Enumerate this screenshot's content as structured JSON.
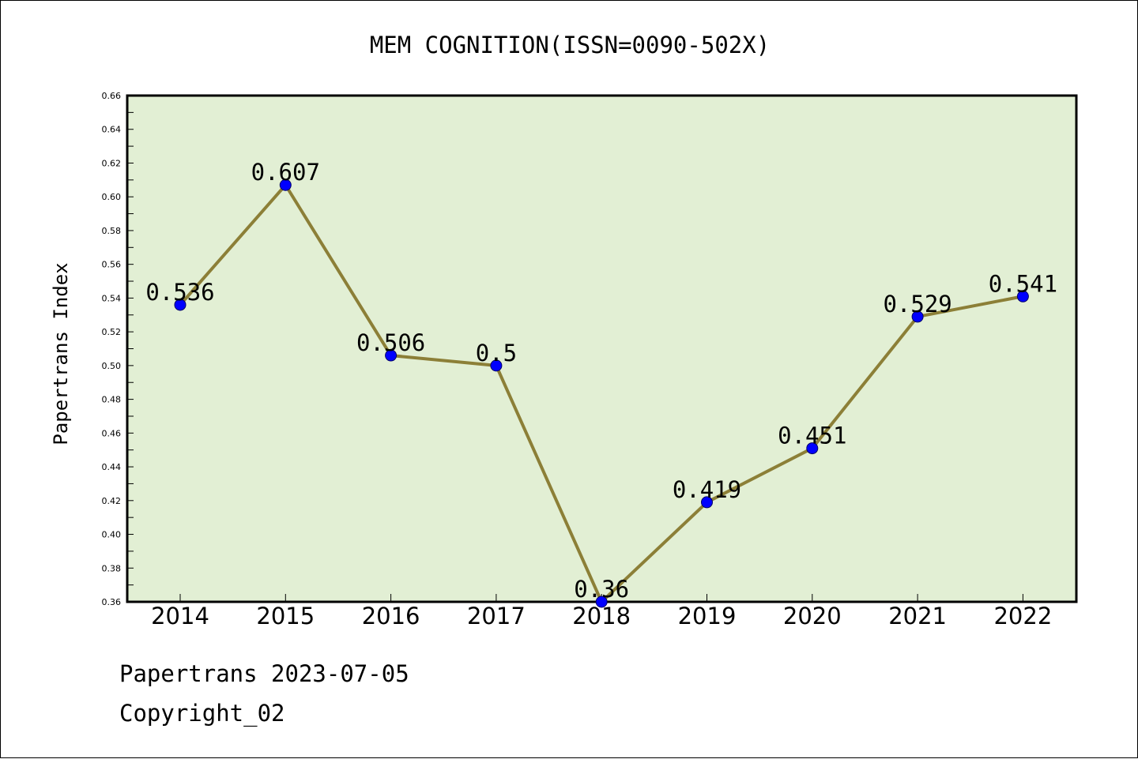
{
  "chart_data": {
    "type": "line",
    "title": "MEM COGNITION(ISSN=0090-502X)",
    "ylabel": "Papertrans Index",
    "xlabel": "",
    "categories": [
      "2014",
      "2015",
      "2016",
      "2017",
      "2018",
      "2019",
      "2020",
      "2021",
      "2022"
    ],
    "values": [
      0.536,
      0.607,
      0.506,
      0.5,
      0.36,
      0.419,
      0.451,
      0.529,
      0.541
    ],
    "data_labels": [
      "0.536",
      "0.607",
      "0.506",
      "0.5",
      "0.36",
      "0.419",
      "0.451",
      "0.529",
      "0.541"
    ],
    "ylim": [
      0.36,
      0.66
    ],
    "y_ticks": [
      "0.36",
      "0.38",
      "0.40",
      "0.42",
      "0.44",
      "0.46",
      "0.48",
      "0.50",
      "0.52",
      "0.54",
      "0.56",
      "0.58",
      "0.60",
      "0.62",
      "0.64",
      "0.66"
    ],
    "grid": false,
    "colors": {
      "plot_background": "#e2efd4",
      "line": "#8c7f37",
      "marker": "#0000ff"
    }
  },
  "footer": {
    "line1": "Papertrans 2023-07-05",
    "line2": "Copyright_02"
  }
}
